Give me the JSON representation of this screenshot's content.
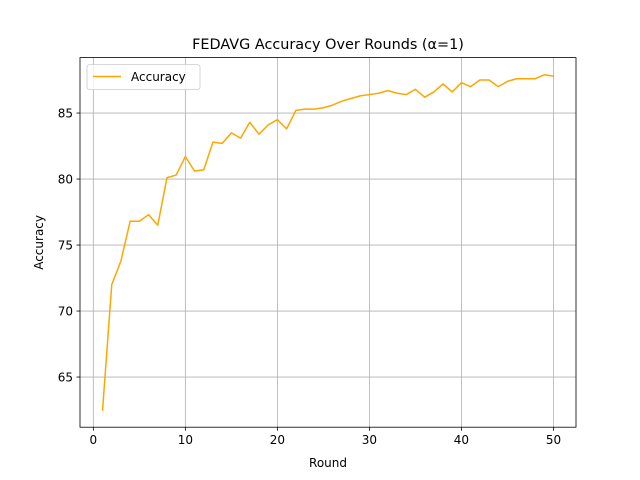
{
  "chart_data": {
    "type": "line",
    "title": "FEDAVG Accuracy Over Rounds (α=1)",
    "xlabel": "Round",
    "ylabel": "Accuracy",
    "xlim": [
      -1.45,
      52.45
    ],
    "ylim": [
      61.2,
      89.2
    ],
    "xticks": [
      0,
      10,
      20,
      30,
      40,
      50
    ],
    "yticks": [
      65,
      70,
      75,
      80,
      85
    ],
    "grid": true,
    "legend": "upper-left",
    "series": [
      {
        "name": "Accuracy",
        "color": "#ffa500",
        "x": [
          1,
          2,
          3,
          4,
          5,
          6,
          7,
          8,
          9,
          10,
          11,
          12,
          13,
          14,
          15,
          16,
          17,
          18,
          19,
          20,
          21,
          22,
          23,
          24,
          25,
          26,
          27,
          28,
          29,
          30,
          31,
          32,
          33,
          34,
          35,
          36,
          37,
          38,
          39,
          40,
          41,
          42,
          43,
          44,
          45,
          46,
          47,
          48,
          49,
          50
        ],
        "values": [
          62.5,
          72.0,
          73.8,
          76.8,
          76.8,
          77.3,
          76.5,
          80.1,
          80.3,
          81.7,
          80.6,
          80.7,
          82.8,
          82.7,
          83.5,
          83.1,
          84.3,
          83.4,
          84.1,
          84.5,
          83.8,
          85.2,
          85.3,
          85.3,
          85.4,
          85.6,
          85.9,
          86.1,
          86.3,
          86.4,
          86.5,
          86.7,
          86.5,
          86.4,
          86.8,
          86.2,
          86.6,
          87.2,
          86.6,
          87.3,
          87.0,
          87.5,
          87.5,
          87.0,
          87.4,
          87.6,
          87.6,
          87.6,
          87.9,
          87.8
        ]
      }
    ]
  }
}
